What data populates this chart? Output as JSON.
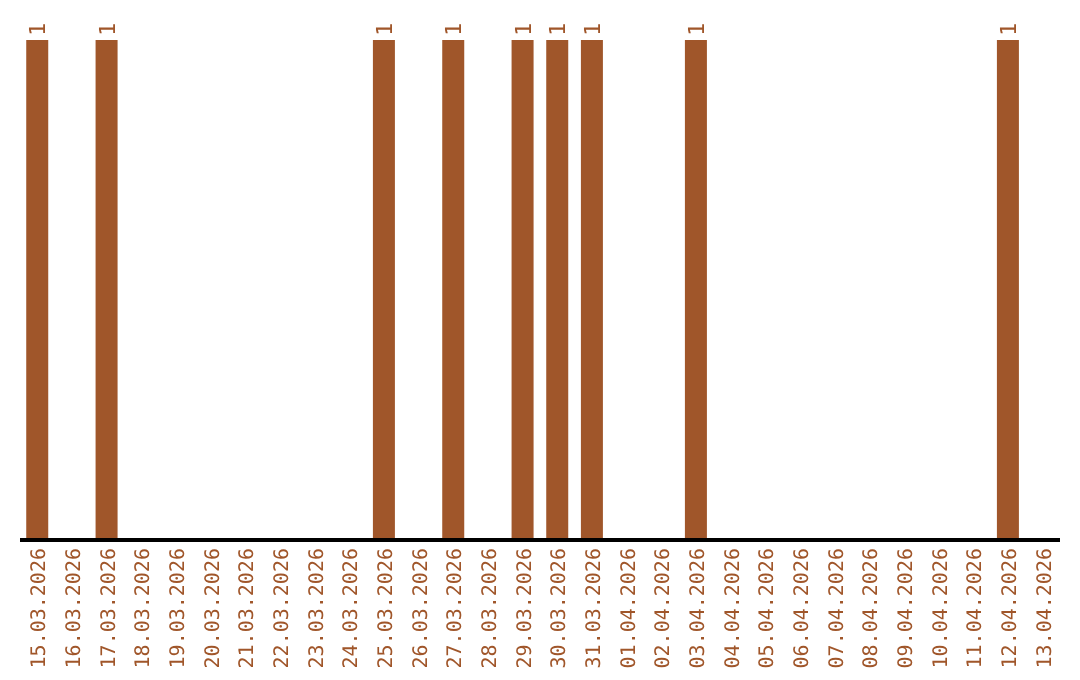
{
  "chart_data": {
    "type": "bar",
    "categories": [
      "15.03.2026",
      "16.03.2026",
      "17.03.2026",
      "18.03.2026",
      "19.03.2026",
      "20.03.2026",
      "21.03.2026",
      "22.03.2026",
      "23.03.2026",
      "24.03.2026",
      "25.03.2026",
      "26.03.2026",
      "27.03.2026",
      "28.03.2026",
      "29.03.2026",
      "30.03.2026",
      "31.03.2026",
      "01.04.2026",
      "02.04.2026",
      "03.04.2026",
      "04.04.2026",
      "05.04.2026",
      "06.04.2026",
      "07.04.2026",
      "08.04.2026",
      "09.04.2026",
      "10.04.2026",
      "11.04.2026",
      "12.04.2026",
      "13.04.2026"
    ],
    "values": [
      1,
      0,
      1,
      0,
      0,
      0,
      0,
      0,
      0,
      0,
      1,
      0,
      1,
      0,
      1,
      1,
      1,
      0,
      0,
      1,
      0,
      0,
      0,
      0,
      0,
      0,
      0,
      0,
      1,
      0
    ],
    "value_labels": [
      "1",
      null,
      "1",
      null,
      null,
      null,
      null,
      null,
      null,
      null,
      "1",
      null,
      "1",
      null,
      "1",
      "1",
      "1",
      null,
      null,
      "1",
      null,
      null,
      null,
      null,
      null,
      null,
      null,
      null,
      "1",
      null
    ],
    "color": "#a0562a",
    "ylim": [
      0,
      1
    ],
    "grid": false,
    "legend": false,
    "tick_labels": "x"
  }
}
